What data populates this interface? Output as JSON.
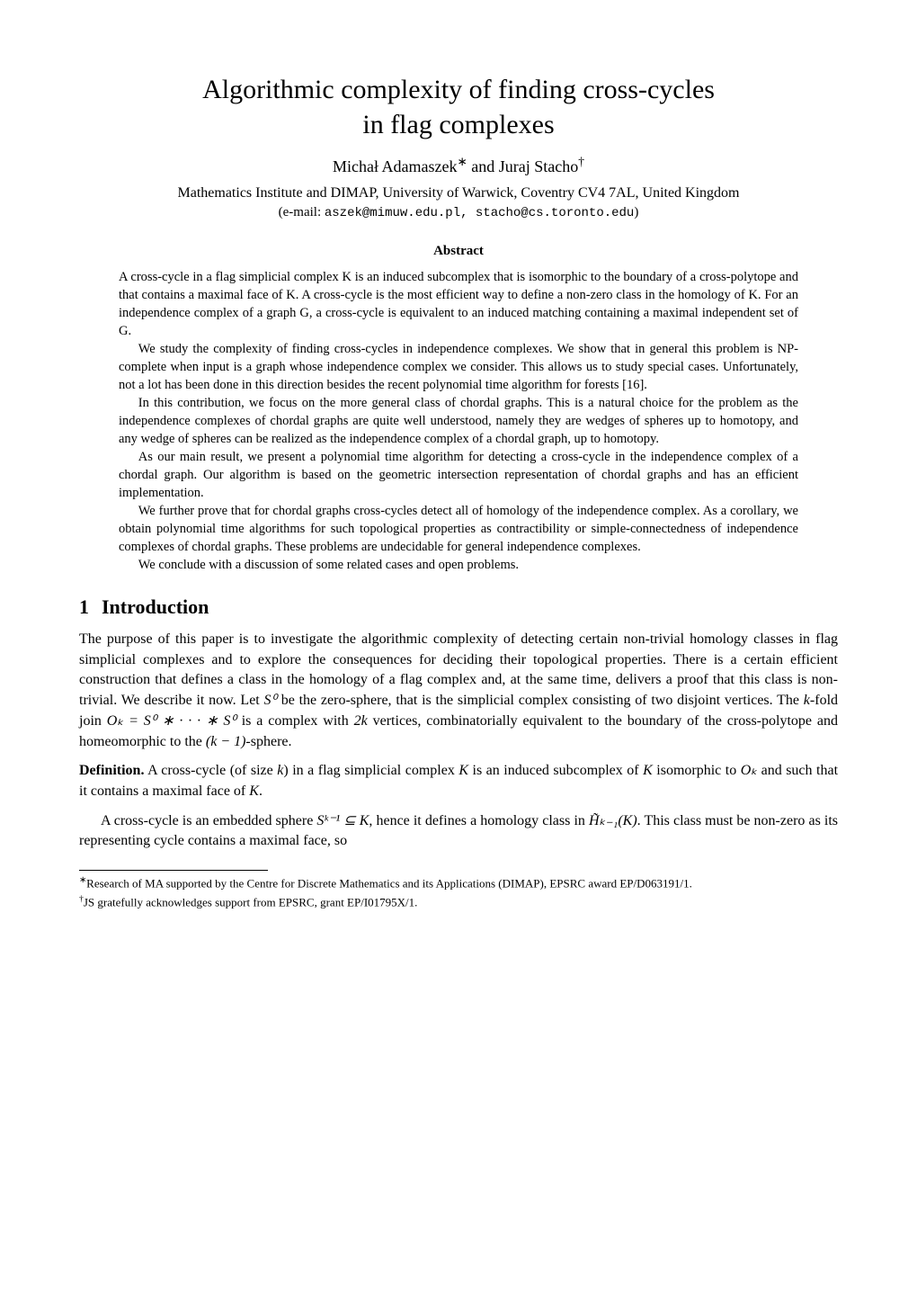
{
  "title_line1": "Algorithmic complexity of finding cross-cycles",
  "title_line2": "in flag complexes",
  "author1": "Michał Adamaszek",
  "author1_mark": "∗",
  "and": " and ",
  "author2": "Juraj Stacho",
  "author2_mark": "†",
  "affiliation": "Mathematics Institute and DIMAP, University of Warwick, Coventry CV4 7AL, United Kingdom",
  "emails_prefix": "(e-mail: ",
  "emails": "aszek@mimuw.edu.pl, stacho@cs.toronto.edu",
  "emails_suffix": ")",
  "abstract_heading": "Abstract",
  "abstract": {
    "p1": "A cross-cycle in a flag simplicial complex K is an induced subcomplex that is isomorphic to the boundary of a cross-polytope and that contains a maximal face of K. A cross-cycle is the most efficient way to define a non-zero class in the homology of K. For an independence complex of a graph G, a cross-cycle is equivalent to an induced matching containing a maximal independent set of G.",
    "p2": "We study the complexity of finding cross-cycles in independence complexes. We show that in general this problem is NP-complete when input is a graph whose independence complex we consider. This allows us to study special cases. Unfortunately, not a lot has been done in this direction besides the recent polynomial time algorithm for forests [16].",
    "p3": "In this contribution, we focus on the more general class of chordal graphs. This is a natural choice for the problem as the independence complexes of chordal graphs are quite well understood, namely they are wedges of spheres up to homotopy, and any wedge of spheres can be realized as the independence complex of a chordal graph, up to homotopy.",
    "p4": "As our main result, we present a polynomial time algorithm for detecting a cross-cycle in the independence complex of a chordal graph. Our algorithm is based on the geometric intersection representation of chordal graphs and has an efficient implementation.",
    "p5": "We further prove that for chordal graphs cross-cycles detect all of homology of the independence complex. As a corollary, we obtain polynomial time algorithms for such topological properties as contractibility or simple-connectedness of independence complexes of chordal graphs. These problems are undecidable for general independence complexes.",
    "p6": "We conclude with a discussion of some related cases and open problems."
  },
  "section1_number": "1",
  "section1_title": "Introduction",
  "intro": {
    "p1a": "The purpose of this paper is to investigate the algorithmic complexity of detecting certain non-trivial homology classes in flag simplicial complexes and to explore the consequences for deciding their topological properties. There is a certain efficient construction that defines a class in the homology of a flag complex and, at the same time, delivers a proof that this class is non-trivial. We describe it now. Let ",
    "p1b": " be the zero-sphere, that is the simplicial complex consisting of two disjoint vertices. The ",
    "p1c": "-fold join ",
    "p1d": " is a complex with ",
    "p1e": " vertices, combinatorially equivalent to the boundary of the cross-polytope and homeomorphic to the ",
    "p1f": "-sphere.",
    "s0": "S⁰",
    "k": "k",
    "ok_eq": "Oₖ = S⁰ ∗ · · · ∗ S⁰",
    "twok": "2k",
    "km1": "(k − 1)"
  },
  "definition": {
    "label": "Definition.",
    "text_a": " A cross-cycle (of size ",
    "text_b": ") in a flag simplicial complex ",
    "text_c": " is an induced subcomplex of ",
    "text_d": " isomorphic to ",
    "text_e": " and such that it contains a maximal face of ",
    "text_f": ".",
    "k": "k",
    "K": "K",
    "Ok": "Oₖ"
  },
  "after_def": {
    "a": "A cross-cycle is an embedded sphere ",
    "b": ", hence it defines a homology class in ",
    "c": ". This class must be non-zero as its representing cycle contains a maximal face, so",
    "skm1": "Sᵏ⁻¹ ⊆ K",
    "hk": "H̃ₖ₋₁(K)"
  },
  "footnotes": {
    "f1_mark": "∗",
    "f1": "Research of MA supported by the Centre for Discrete Mathematics and its Applications (DIMAP), EPSRC award EP/D063191/1.",
    "f2_mark": "†",
    "f2": "JS gratefully acknowledges support from EPSRC, grant EP/I01795X/1."
  }
}
